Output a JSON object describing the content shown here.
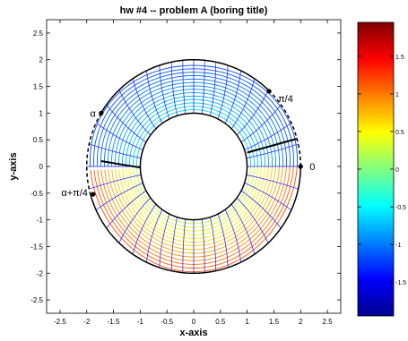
{
  "chart_data": [
    {
      "type": "contour",
      "title": "hw #4 -- problem A (boring title)",
      "xlabel": "x-axis",
      "ylabel": "y-axis",
      "xlim": [
        -2.75,
        2.75
      ],
      "ylim": [
        -2.75,
        2.75
      ],
      "xticks": [
        "-2.5",
        "-2",
        "-1.5",
        "-1",
        "-0.5",
        "0",
        "0.5",
        "1",
        "1.5",
        "2",
        "2.5"
      ],
      "yticks": [
        "-2.5",
        "-2",
        "-1.5",
        "-1",
        "-0.5",
        "0",
        "0.5",
        "1",
        "1.5",
        "2",
        "2.5"
      ],
      "grid": false,
      "domain": {
        "shape": "annulus",
        "inner_radius": 1,
        "outer_radius": 2,
        "center": [
          0,
          0
        ]
      },
      "annotations": [
        {
          "text": "0",
          "x": 2.0,
          "y": 0.0
        },
        {
          "text": "π/4",
          "x": 1.41,
          "y": 1.41
        },
        {
          "text": "α",
          "x": -1.73,
          "y": 1.0
        },
        {
          "text": "α+π/4",
          "x": -1.88,
          "y": -0.52
        }
      ],
      "cuts": [
        {
          "x": [
            1.0,
            1.93
          ],
          "y": [
            0.26,
            0.52
          ]
        },
        {
          "x": [
            -1.0,
            -1.73
          ],
          "y": [
            -0.02,
            0.1
          ]
        }
      ],
      "dashed_outer_arcs_deg": [
        [
          0,
          45
        ],
        [
          150,
          195
        ]
      ],
      "contours": {
        "levels": [
          -0.2,
          0.0,
          0.2,
          0.4,
          0.6,
          0.8,
          1.0,
          1.2
        ],
        "colormap": "jet"
      }
    },
    {
      "type": "colorbar",
      "colormap": "jet",
      "range": [
        -1.95,
        1.95
      ],
      "ticks": [
        "-1.5",
        "-1",
        "-0.5",
        "0",
        "0.5",
        "1",
        "1.5"
      ]
    }
  ]
}
